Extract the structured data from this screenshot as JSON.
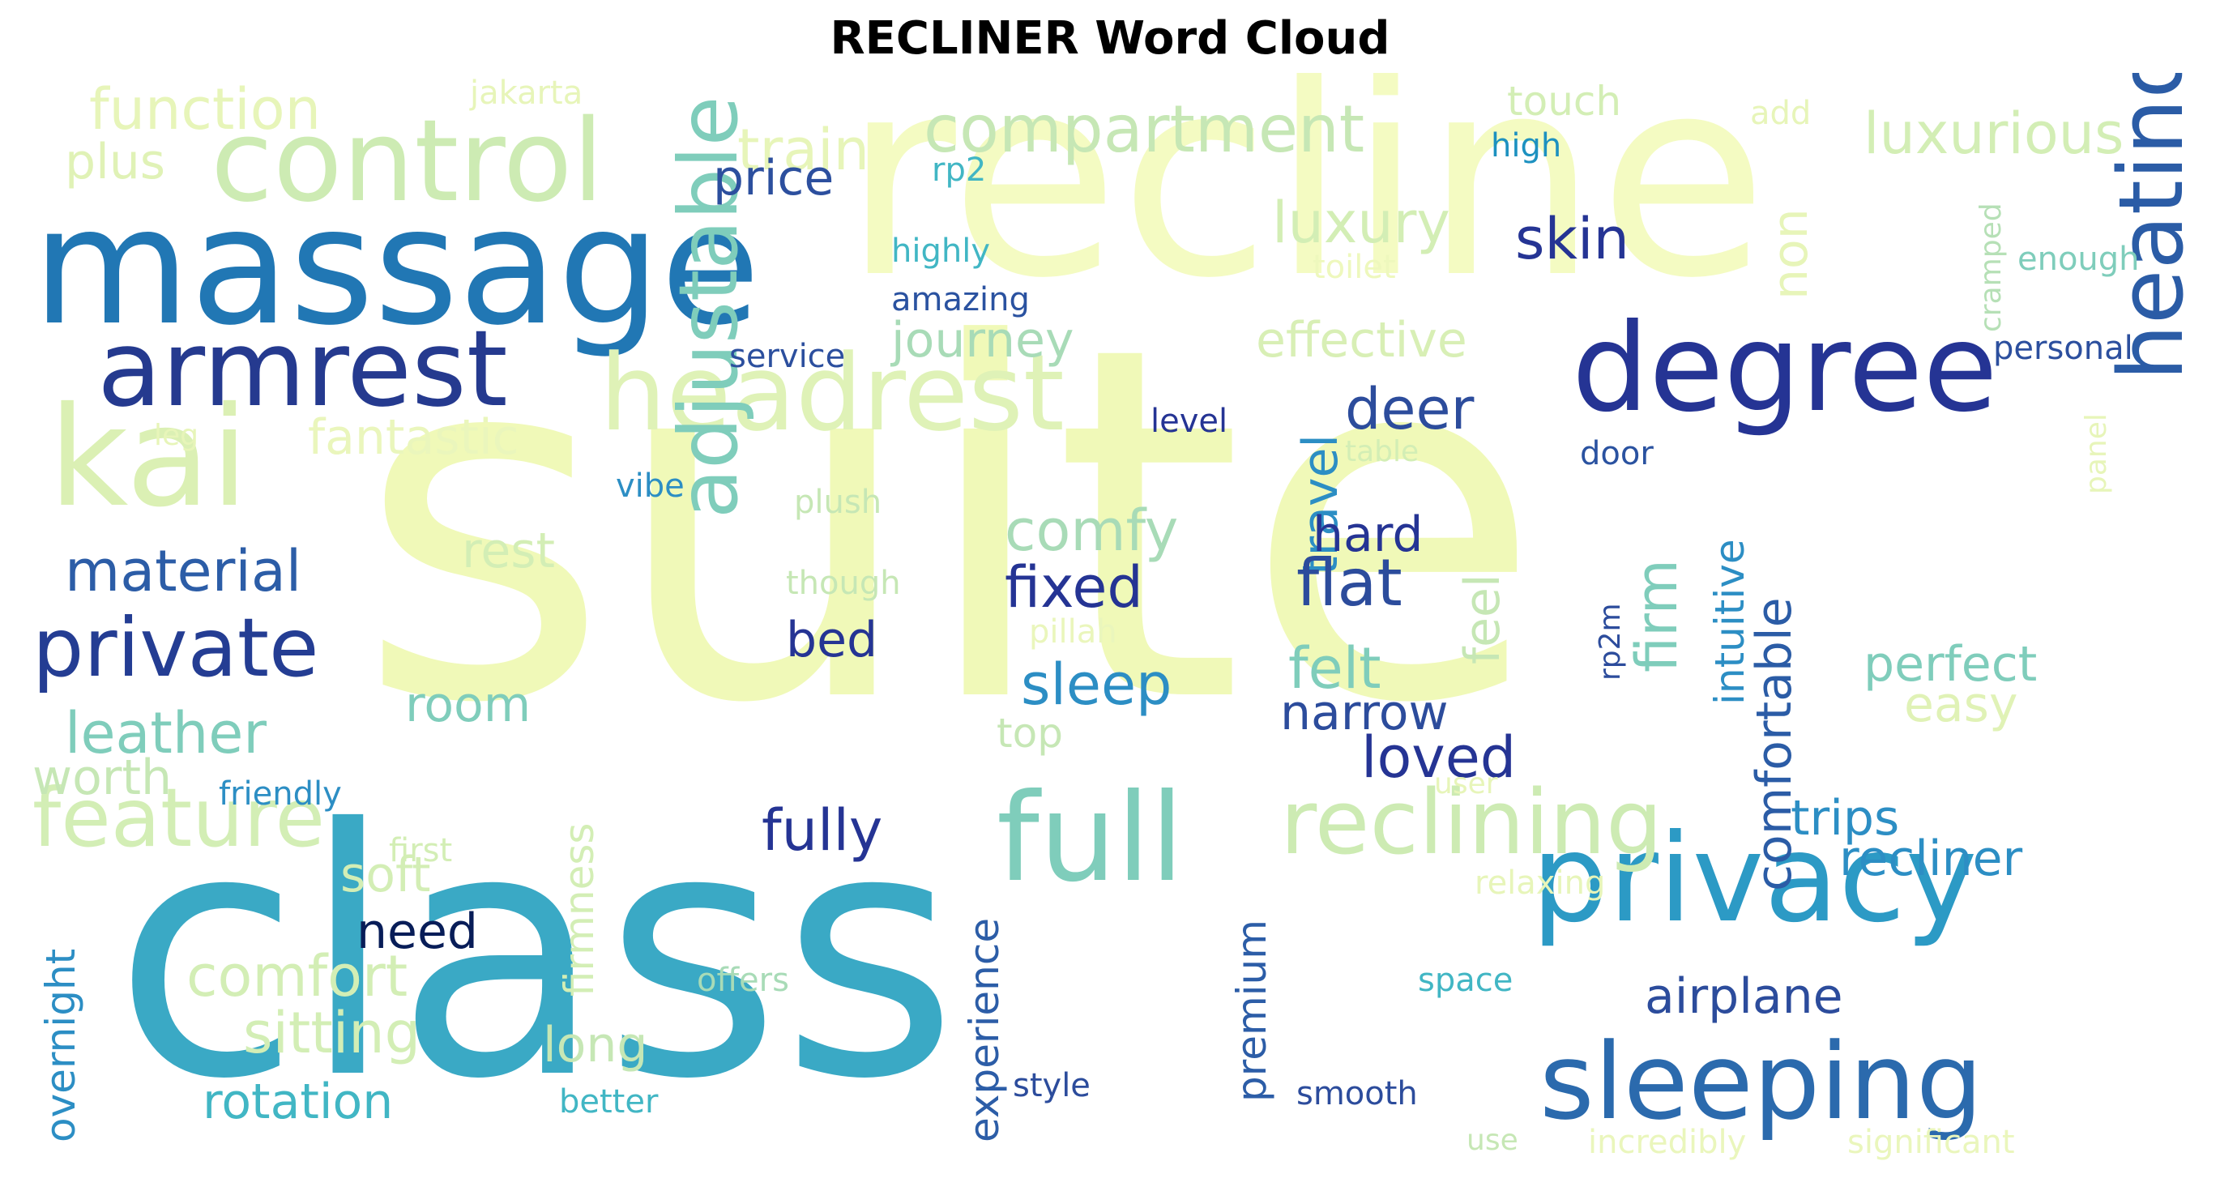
{
  "title": "RECLINER Word Cloud",
  "palette": {
    "pale_yellow": "#f0f9b8",
    "pale_green": "#d3eeb5",
    "light_green": "#c6e7b5",
    "teal_light": "#7fcdbb",
    "teal": "#41b6c4",
    "cyan_blue": "#1d91c0",
    "blue": "#225ea8",
    "navy": "#253494",
    "dark_navy": "#081d58"
  },
  "words": [
    {
      "text": "suite",
      "color": "#f0f9b8"
    },
    {
      "text": "class",
      "color": "#3aa9c5"
    },
    {
      "text": "recline",
      "color": "#f4fbc2"
    },
    {
      "text": "massage",
      "color": "#2177b4"
    },
    {
      "text": "control",
      "color": "#cdebb3"
    },
    {
      "text": "degree",
      "color": "#253494"
    },
    {
      "text": "privacy",
      "color": "#2c9ac5"
    },
    {
      "text": "headrest",
      "color": "#dff2b7"
    },
    {
      "text": "armrest",
      "color": "#253a8f"
    },
    {
      "text": "kai",
      "color": "#dbf0b4"
    },
    {
      "text": "full",
      "color": "#7fcdbb"
    },
    {
      "text": "sleeping",
      "color": "#2b6aad"
    },
    {
      "text": "heating",
      "color": "#2b5ca6"
    },
    {
      "text": "reclining",
      "color": "#cdebb3"
    },
    {
      "text": "private",
      "color": "#243d93"
    },
    {
      "text": "adjustable",
      "color": "#7fcdbb"
    },
    {
      "text": "feature",
      "color": "#d3eeb5"
    },
    {
      "text": "compartment",
      "color": "#c6e7b5"
    },
    {
      "text": "luxurious",
      "color": "#d3eeb5"
    },
    {
      "text": "function",
      "color": "#e7f5b9"
    },
    {
      "text": "train",
      "color": "#e7f5b9"
    },
    {
      "text": "touch",
      "color": "#d3eeb5"
    },
    {
      "text": "jakarta",
      "color": "#e7f5b9"
    },
    {
      "text": "add",
      "color": "#e7f5b9"
    },
    {
      "text": "high",
      "color": "#1d91c0"
    },
    {
      "text": "plus",
      "color": "#e0f2b6"
    },
    {
      "text": "price",
      "color": "#2c4f9e"
    },
    {
      "text": "rp2",
      "color": "#41b6c4"
    },
    {
      "text": "luxury",
      "color": "#d3eeb5"
    },
    {
      "text": "skin",
      "color": "#253494"
    },
    {
      "text": "highly",
      "color": "#41b6c4"
    },
    {
      "text": "amazing",
      "color": "#2a52a0"
    },
    {
      "text": "toilet",
      "color": "#eef8bd"
    },
    {
      "text": "enough",
      "color": "#7fcdbb"
    },
    {
      "text": "cramped",
      "color": "#b6e0b6"
    },
    {
      "text": "non",
      "color": "#e7f5b9"
    },
    {
      "text": "effective",
      "color": "#d8efb5"
    },
    {
      "text": "journey",
      "color": "#a8dbb7"
    },
    {
      "text": "service",
      "color": "#2c4f9e"
    },
    {
      "text": "personal",
      "color": "#2c4f9e"
    },
    {
      "text": "deer",
      "color": "#2c4c9c"
    },
    {
      "text": "level",
      "color": "#253494"
    },
    {
      "text": "table",
      "color": "#d3eeb5"
    },
    {
      "text": "door",
      "color": "#2a52a0"
    },
    {
      "text": "panel",
      "color": "#e7f5b9"
    },
    {
      "text": "fantastic",
      "color": "#eaf6bc"
    },
    {
      "text": "leg",
      "color": "#e7f5b9"
    },
    {
      "text": "vibe",
      "color": "#2c8ec4"
    },
    {
      "text": "plush",
      "color": "#c6e7b5"
    },
    {
      "text": "travel",
      "color": "#2c8ec4"
    },
    {
      "text": "comfy",
      "color": "#a8dbb7"
    },
    {
      "text": "hard",
      "color": "#253494"
    },
    {
      "text": "rest",
      "color": "#d3eeb5"
    },
    {
      "text": "material",
      "color": "#2c5da7"
    },
    {
      "text": "though",
      "color": "#c6e7b5"
    },
    {
      "text": "fixed",
      "color": "#253494"
    },
    {
      "text": "flat",
      "color": "#2c4c9c"
    },
    {
      "text": "feel",
      "color": "#c6e7b5"
    },
    {
      "text": "firm",
      "color": "#7fcdbb"
    },
    {
      "text": "intuitive",
      "color": "#2c8ec4"
    },
    {
      "text": "comfortable",
      "color": "#2b5ca6"
    },
    {
      "text": "pillah",
      "color": "#eaf6bc"
    },
    {
      "text": "rp2m",
      "color": "#2c4c9c"
    },
    {
      "text": "bed",
      "color": "#253494"
    },
    {
      "text": "sleep",
      "color": "#2c8ec4"
    },
    {
      "text": "felt",
      "color": "#7fcdbb"
    },
    {
      "text": "perfect",
      "color": "#7fcdbb"
    },
    {
      "text": "easy",
      "color": "#e0f2b6"
    },
    {
      "text": "room",
      "color": "#7fcdbb"
    },
    {
      "text": "leather",
      "color": "#7fcdbb"
    },
    {
      "text": "narrow",
      "color": "#2c4c9c"
    },
    {
      "text": "top",
      "color": "#c6e7b5"
    },
    {
      "text": "loved",
      "color": "#253494"
    },
    {
      "text": "user",
      "color": "#e7f5b9"
    },
    {
      "text": "worth",
      "color": "#c6e7b5"
    },
    {
      "text": "friendly",
      "color": "#2c8ec4"
    },
    {
      "text": "fully",
      "color": "#253494"
    },
    {
      "text": "trips",
      "color": "#2c8ec4"
    },
    {
      "text": "recliner",
      "color": "#2c8ec4"
    },
    {
      "text": "first",
      "color": "#d3eeb5"
    },
    {
      "text": "firmness",
      "color": "#d3eeb5"
    },
    {
      "text": "soft",
      "color": "#d3eeb5"
    },
    {
      "text": "experience",
      "color": "#2c5da7"
    },
    {
      "text": "relaxing",
      "color": "#e7f5b9"
    },
    {
      "text": "need",
      "color": "#081d58"
    },
    {
      "text": "overnight",
      "color": "#2c8ec4"
    },
    {
      "text": "comfort",
      "color": "#d3eeb5"
    },
    {
      "text": "premium",
      "color": "#2c5da7"
    },
    {
      "text": "airplane",
      "color": "#2c4c9c"
    },
    {
      "text": "offers",
      "color": "#a8dbb7"
    },
    {
      "text": "space",
      "color": "#41b6c4"
    },
    {
      "text": "sitting",
      "color": "#d3eeb5"
    },
    {
      "text": "long",
      "color": "#c6e7b5"
    },
    {
      "text": "rotation",
      "color": "#41b6c4"
    },
    {
      "text": "style",
      "color": "#2c4c9c"
    },
    {
      "text": "smooth",
      "color": "#2c4c9c"
    },
    {
      "text": "better",
      "color": "#41b6c4"
    },
    {
      "text": "use",
      "color": "#c6e7b5"
    },
    {
      "text": "incredibly",
      "color": "#eaf6bc"
    },
    {
      "text": "significant",
      "color": "#eaf6bc"
    }
  ]
}
